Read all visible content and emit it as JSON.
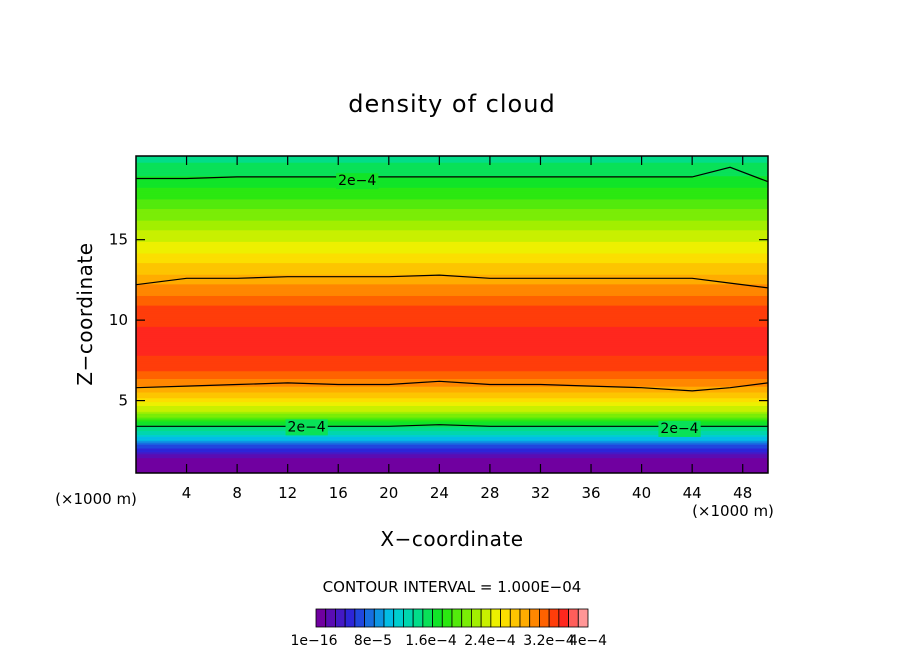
{
  "chart_data": {
    "type": "contour",
    "title": "density of cloud",
    "xlabel": "X−coordinate",
    "ylabel": "Z−coordinate",
    "x_unit_left": "(×1000 m)",
    "x_unit_right": "(×1000 m)",
    "xlim": [
      0,
      50
    ],
    "ylim": [
      0.5,
      20.2
    ],
    "x_ticks": [
      4,
      8,
      12,
      16,
      20,
      24,
      28,
      32,
      36,
      40,
      44,
      48
    ],
    "y_ticks": [
      5,
      10,
      15
    ],
    "contour_interval_text": "CONTOUR INTERVAL = 1.000E−04",
    "contour_label": "2e−4",
    "contour_label_positions": [
      {
        "x": 17.5,
        "z": 18.7
      },
      {
        "x": 13.5,
        "z": 3.4
      },
      {
        "x": 43.0,
        "z": 3.3
      }
    ],
    "levels": {
      "min": 1e-16,
      "max": 0.0004,
      "count": 28
    },
    "colorbar_labels": [
      "1e−16",
      "8e−5",
      "1.6e−4",
      "2.4e−4",
      "3.2e−4",
      "4e−4"
    ],
    "band_profile": [
      {
        "z": 0.5,
        "level": 0
      },
      {
        "z": 1.3,
        "level": 0
      },
      {
        "z": 2.1,
        "level": 4
      },
      {
        "z": 2.8,
        "level": 8
      },
      {
        "z": 3.4,
        "level": 11
      },
      {
        "z": 4.2,
        "level": 16
      },
      {
        "z": 5.6,
        "level": 21
      },
      {
        "z": 7.0,
        "level": 24
      },
      {
        "z": 8.5,
        "level": 25
      },
      {
        "z": 10.5,
        "level": 24
      },
      {
        "z": 12.5,
        "level": 21
      },
      {
        "z": 14.5,
        "level": 18
      },
      {
        "z": 16.5,
        "level": 15
      },
      {
        "z": 18.5,
        "level": 12
      },
      {
        "z": 20.2,
        "level": 10
      }
    ],
    "contour_lines": [
      {
        "name": "upper",
        "z": [
          18.8,
          18.8,
          18.9,
          18.9,
          18.9,
          18.9,
          18.9,
          18.9,
          18.9,
          18.9,
          18.9,
          18.9,
          19.5,
          18.6
        ]
      },
      {
        "name": "mid-upper",
        "z": [
          12.2,
          12.6,
          12.6,
          12.7,
          12.7,
          12.7,
          12.8,
          12.6,
          12.6,
          12.6,
          12.6,
          12.6,
          12.3,
          12.0
        ]
      },
      {
        "name": "mid-lower",
        "z": [
          5.8,
          5.9,
          6.0,
          6.1,
          6.0,
          6.0,
          6.2,
          6.0,
          6.0,
          5.9,
          5.8,
          5.6,
          5.8,
          6.1
        ]
      },
      {
        "name": "lower",
        "z": [
          3.4,
          3.4,
          3.4,
          3.4,
          3.4,
          3.4,
          3.5,
          3.4,
          3.4,
          3.4,
          3.4,
          3.4,
          3.4,
          3.4
        ]
      }
    ],
    "contour_x": [
      0,
      4,
      8,
      12,
      16,
      20,
      24,
      28,
      32,
      36,
      40,
      44,
      47,
      50
    ],
    "grid": false
  }
}
